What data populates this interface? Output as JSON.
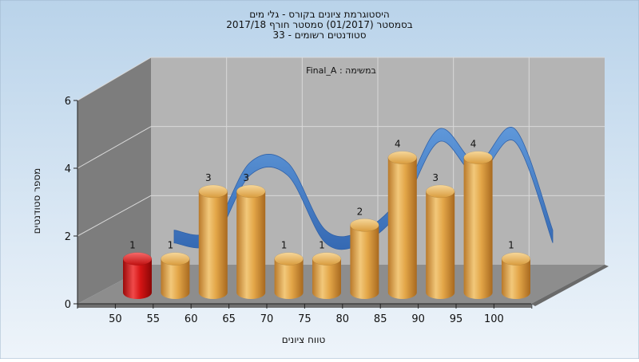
{
  "chart_data": {
    "type": "bar",
    "title_lines": [
      "היסטוגרמת ציונים בקורס - גלי מים",
      "בסמסטר  (01/2017)  סמסטר חורף 2017/18",
      "סטודנטים רשומים - 33"
    ],
    "subtitle": "Final_A : במשימה",
    "xlabel": "טווח ציונים",
    "ylabel": "מספר סטודנטים",
    "ylim": [
      0,
      6
    ],
    "y_ticks": [
      "0",
      "2",
      "4",
      "6"
    ],
    "x_ticks": [
      "50",
      "55",
      "60",
      "65",
      "70",
      "75",
      "80",
      "85",
      "90",
      "95",
      "100"
    ],
    "values": [
      1,
      1,
      3,
      3,
      1,
      1,
      2,
      4,
      3,
      4,
      1
    ],
    "bar_colors": [
      "#cc0f0f",
      "#e0a340",
      "#e0a340",
      "#e0a340",
      "#e0a340",
      "#e0a340",
      "#e0a340",
      "#e0a340",
      "#e0a340",
      "#e0a340",
      "#e0a340"
    ],
    "trend_color": "#3a78c8",
    "background_colors": [
      "#b9d3ea",
      "#eef4fa"
    ],
    "grid": true
  }
}
